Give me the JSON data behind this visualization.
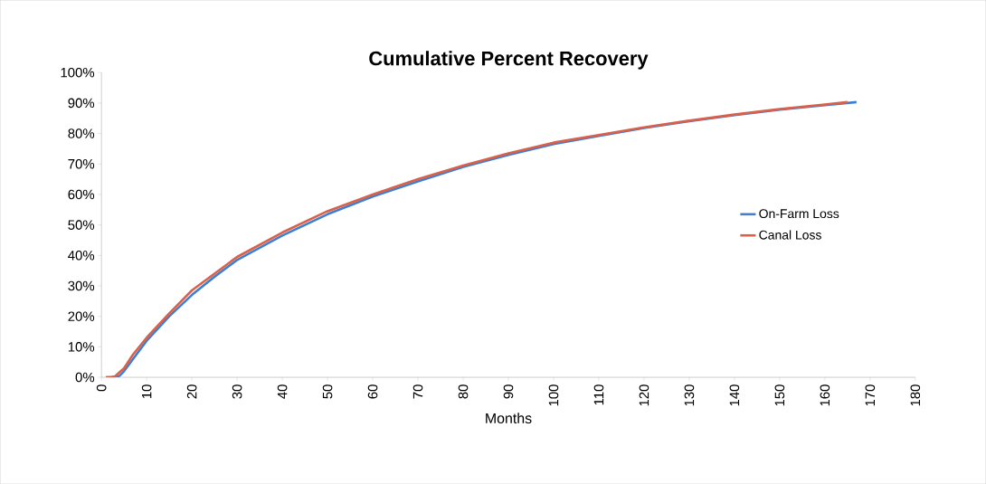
{
  "chart_data": {
    "type": "line",
    "title": "Cumulative Percent Recovery",
    "xlabel": "Months",
    "xlim": [
      0,
      180
    ],
    "xticks": [
      0,
      10,
      20,
      30,
      40,
      50,
      60,
      70,
      80,
      90,
      100,
      110,
      120,
      130,
      140,
      150,
      160,
      170,
      180
    ],
    "ylim": [
      0,
      100
    ],
    "yticks": [
      {
        "value": 0,
        "label": "0%"
      },
      {
        "value": 10,
        "label": "10%"
      },
      {
        "value": 20,
        "label": "20%"
      },
      {
        "value": 30,
        "label": "30%"
      },
      {
        "value": 40,
        "label": "40%"
      },
      {
        "value": 50,
        "label": "50%"
      },
      {
        "value": 60,
        "label": "60%"
      },
      {
        "value": 70,
        "label": "70%"
      },
      {
        "value": 80,
        "label": "80%"
      },
      {
        "value": 90,
        "label": "90%"
      },
      {
        "value": 100,
        "label": "100%"
      }
    ],
    "grid": false,
    "legend": "right",
    "marker": "none",
    "line_style": "solid",
    "series": [
      {
        "name": "On-Farm Loss",
        "color": "#3f7fd0",
        "x": [
          1,
          3,
          4,
          5,
          7,
          10,
          15,
          20,
          25,
          30,
          40,
          50,
          60,
          70,
          80,
          90,
          100,
          110,
          120,
          130,
          140,
          150,
          160,
          167
        ],
        "values": [
          0,
          0,
          0.5,
          2,
          6,
          12,
          20,
          27,
          33,
          38.5,
          46.5,
          53.5,
          59.3,
          64.3,
          69,
          73,
          76.5,
          79.2,
          81.8,
          84,
          86,
          87.8,
          89.3,
          90.3
        ]
      },
      {
        "name": "Canal Loss",
        "color": "#d9604a",
        "x": [
          1,
          2,
          3,
          5,
          7,
          10,
          15,
          20,
          25,
          30,
          40,
          50,
          60,
          70,
          80,
          90,
          100,
          110,
          120,
          130,
          140,
          150,
          160,
          165
        ],
        "values": [
          0,
          0,
          0.3,
          3,
          7.5,
          13,
          21,
          28.5,
          34,
          39.5,
          47.5,
          54.5,
          60,
          65,
          69.5,
          73.5,
          77,
          79.5,
          82,
          84.2,
          86.2,
          88,
          89.5,
          90.3
        ]
      }
    ]
  }
}
